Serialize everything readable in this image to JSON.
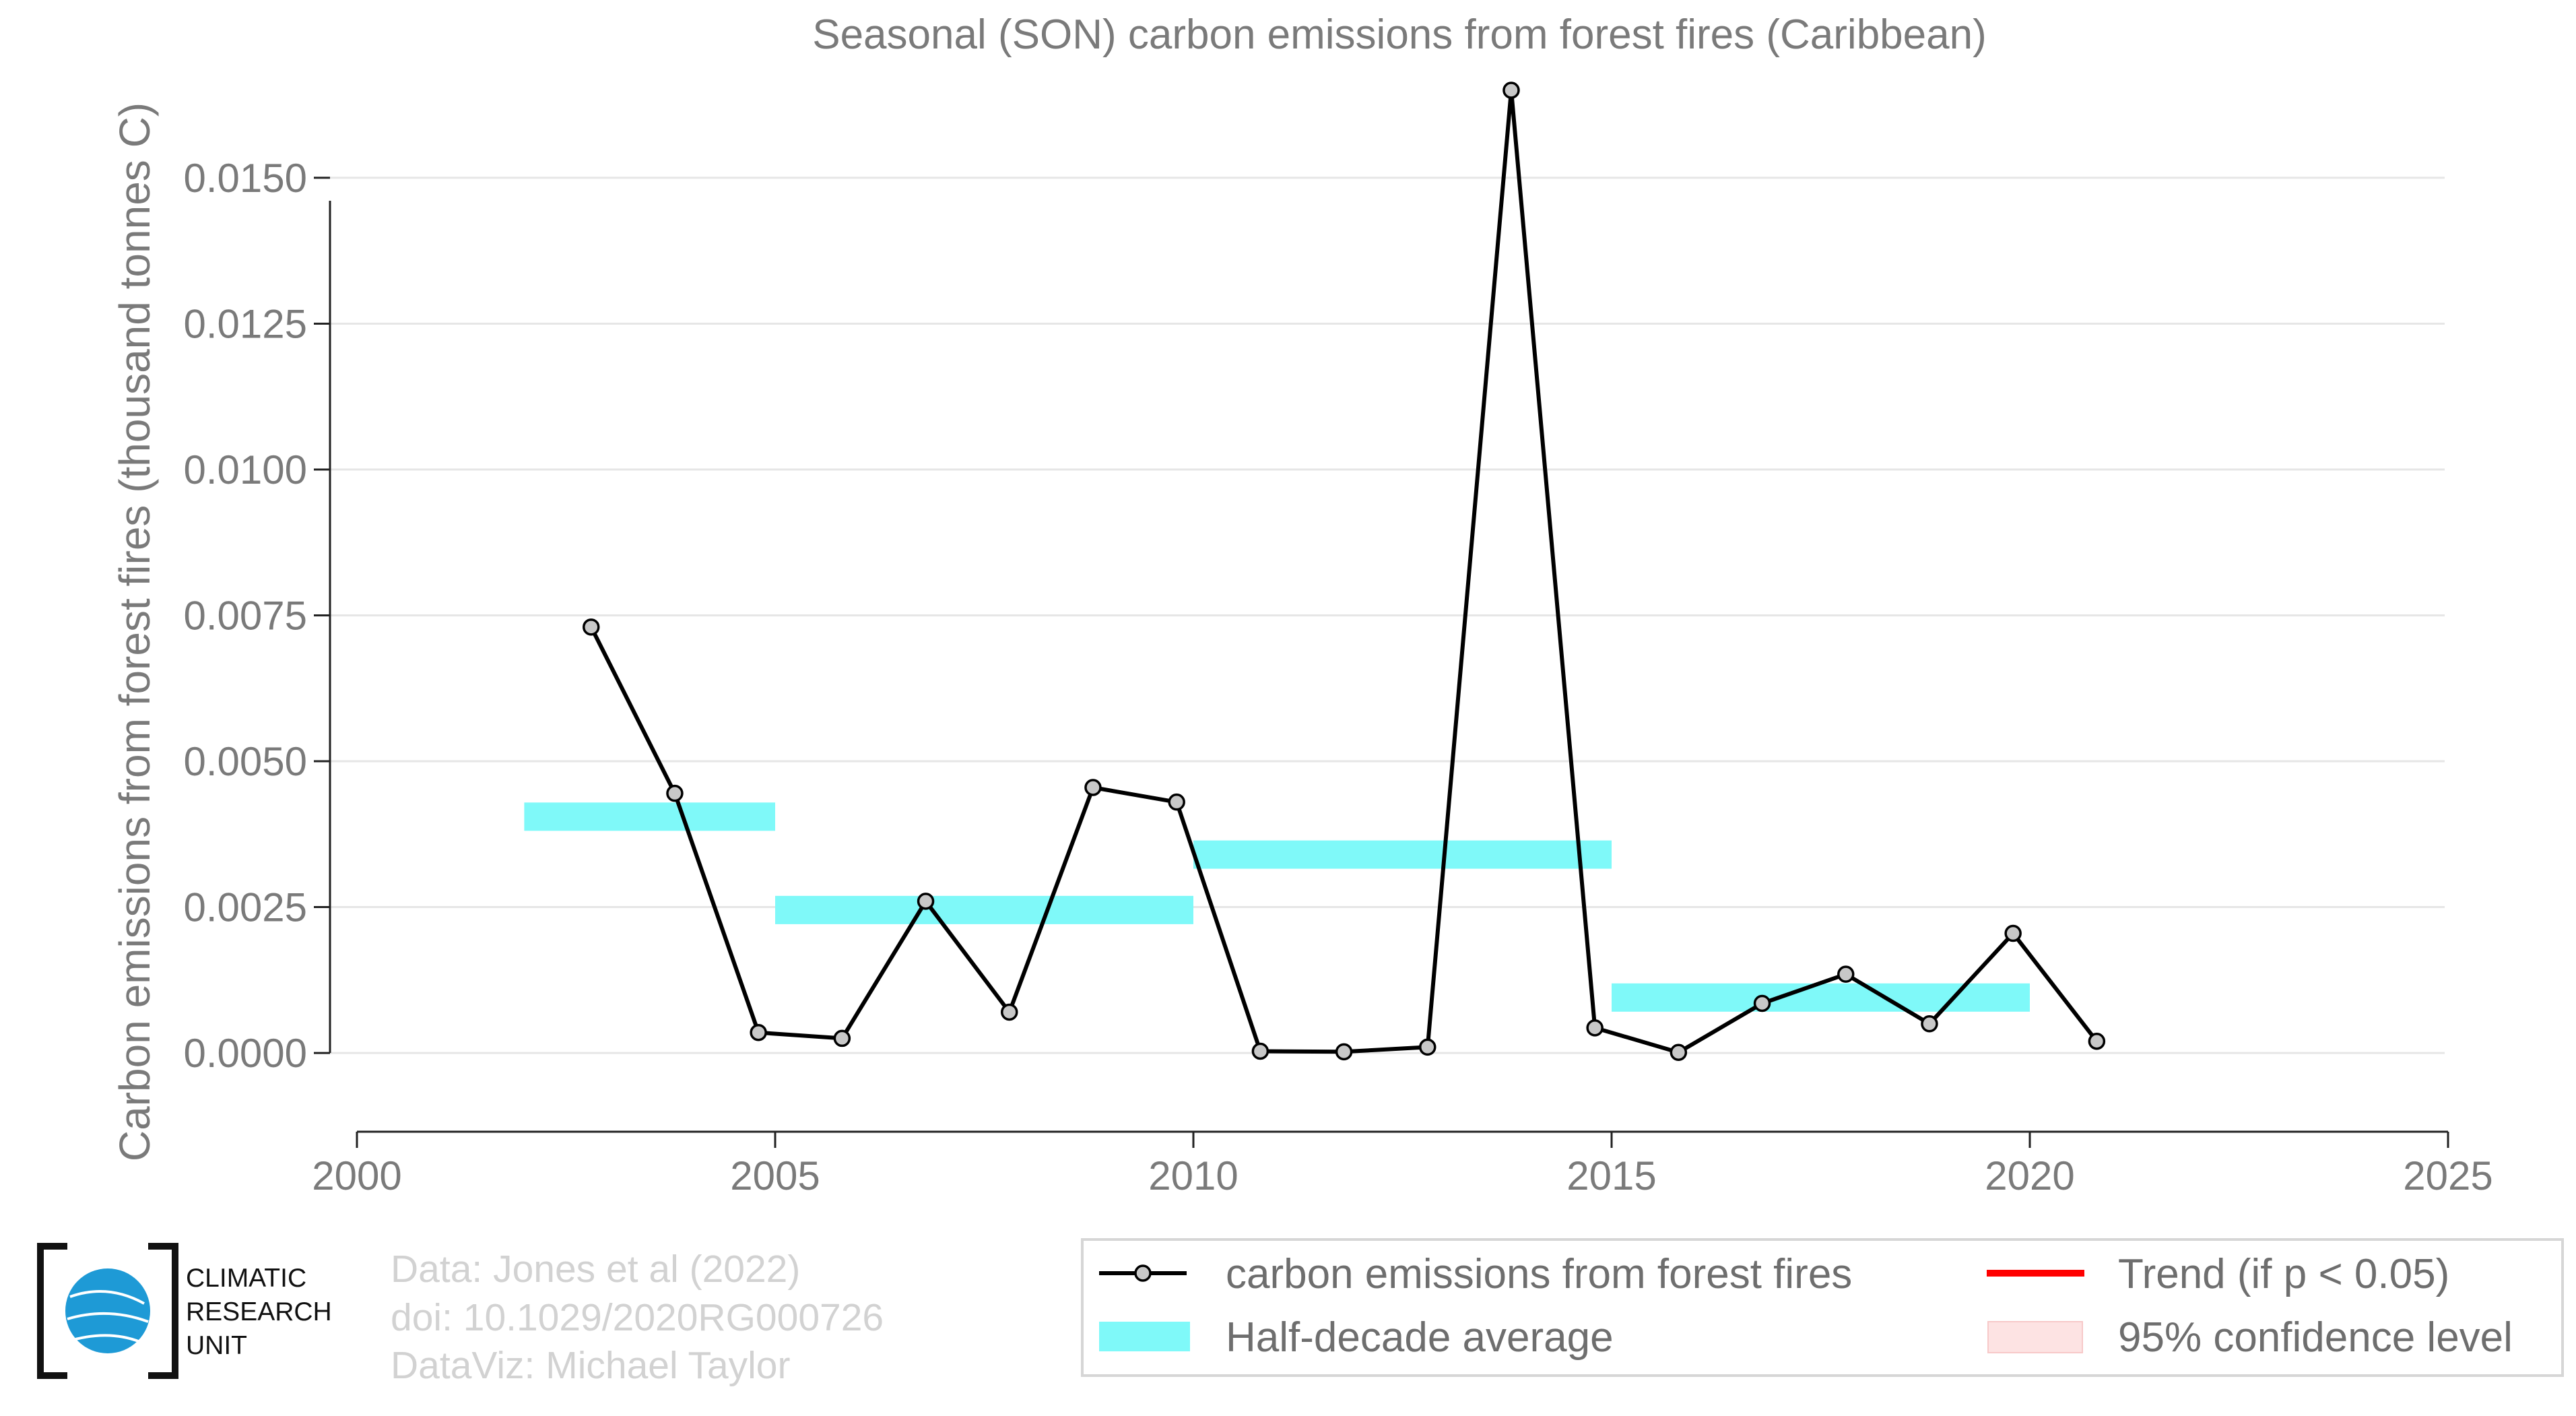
{
  "chart_data": {
    "type": "line",
    "title": "Seasonal (SON) carbon emissions from forest fires (Caribbean)",
    "xlabel": "",
    "ylabel": "Carbon emissions from forest fires (thousand tonnes C)",
    "xlim": [
      2000,
      2025
    ],
    "ylim": [
      -0.00135,
      0.0162
    ],
    "x_ticks": [
      2000,
      2005,
      2010,
      2015,
      2020,
      2025
    ],
    "x_tick_labels": [
      "2000",
      "2005",
      "2010",
      "2015",
      "2020",
      "2025"
    ],
    "y_ticks": [
      0,
      0.0025,
      0.005,
      0.0075,
      0.01,
      0.0125,
      0.015
    ],
    "y_tick_labels": [
      "0.0000",
      "0.0025",
      "0.0050",
      "0.0075",
      "0.0100",
      "0.0125",
      "0.0150"
    ],
    "grid": "horizontal",
    "series": [
      {
        "name": "carbon emissions from forest fires",
        "color": "#000000",
        "marker_color": "#c8c8c8",
        "x": [
          2002.8,
          2003.8,
          2004.8,
          2005.8,
          2006.8,
          2007.8,
          2008.8,
          2009.8,
          2010.8,
          2011.8,
          2012.8,
          2013.8,
          2014.8,
          2015.8,
          2016.8,
          2017.8,
          2018.8,
          2019.8,
          2020.8
        ],
        "y": [
          0.0073,
          0.00445,
          0.00035,
          0.00025,
          0.0026,
          0.0007,
          0.00455,
          0.0043,
          3e-05,
          2e-05,
          0.0001,
          0.0165,
          0.00043,
          1e-05,
          0.00085,
          0.00135,
          0.0005,
          0.00205,
          0.0002
        ]
      },
      {
        "name": "Half-decade average",
        "color": "#7ff9f9",
        "segments": [
          {
            "x_start": 2002,
            "x_end": 2005,
            "value": 0.00405
          },
          {
            "x_start": 2005,
            "x_end": 2010,
            "value": 0.00245
          },
          {
            "x_start": 2010,
            "x_end": 2015,
            "value": 0.0034
          },
          {
            "x_start": 2015,
            "x_end": 2020,
            "value": 0.00095
          }
        ]
      }
    ],
    "legend": {
      "placement": "bottom-right",
      "items": [
        {
          "label": "carbon emissions from forest fires",
          "color": "#000000",
          "style": "line-marker"
        },
        {
          "label": "Trend (if p < 0.05)",
          "color": "#ff0000",
          "style": "line"
        },
        {
          "label": "Half-decade average",
          "color": "#7ff9f9",
          "style": "patch"
        },
        {
          "label": "95% confidence level",
          "color": "#fde3e3",
          "style": "patch"
        }
      ]
    }
  },
  "credits": {
    "line1": "Data: Jones et al (2022)",
    "line2": "doi: 10.1029/2020RG000726",
    "line3": "DataViz: Michael Taylor"
  },
  "logo": {
    "name": "climatic-research-unit-logo",
    "line1": "CLIMATIC",
    "line2": "RESEARCH",
    "line3": "UNIT"
  }
}
